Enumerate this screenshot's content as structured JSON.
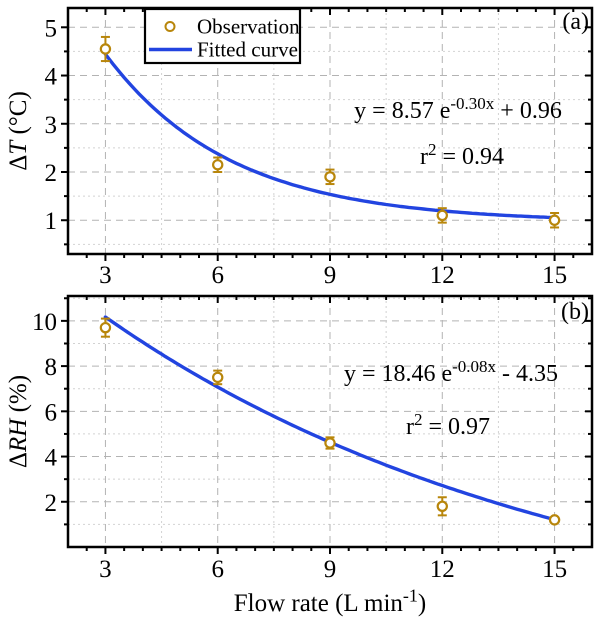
{
  "figure": {
    "xlabel_parts": [
      {
        "t": "Flow rate (L min"
      },
      {
        "t": "-1",
        "sup": true
      },
      {
        "t": ")"
      }
    ],
    "legend": {
      "position": "top-left",
      "items": [
        {
          "type": "marker",
          "label": "Observation"
        },
        {
          "type": "line",
          "label": "Fitted curve"
        }
      ]
    },
    "colors": {
      "curve": "#2244E0",
      "marker": "#B8860B",
      "grid_major": "#b3b3b3",
      "grid_minor": "#d2d2d2",
      "axis": "#000000",
      "background": "#ffffff"
    }
  },
  "chart_data": [
    {
      "type": "scatter",
      "panel_tag": "(a)",
      "xlabel": "Flow rate (L min^-1)",
      "ylabel": "dT (degC)",
      "ylabel_parts": [
        {
          "t": "Δ"
        },
        {
          "t": "T",
          "italic": true
        },
        {
          "t": " (°C)"
        }
      ],
      "x": [
        3,
        6,
        9,
        12,
        15
      ],
      "series": [
        {
          "name": "Observation",
          "style": "points",
          "values": [
            4.55,
            2.15,
            1.9,
            1.1,
            1.0
          ],
          "yerr": [
            0.25,
            0.15,
            0.15,
            0.15,
            0.15
          ]
        },
        {
          "name": "Fitted curve",
          "style": "line",
          "equation": "y = 8.57 e^(-0.30x) + 0.96",
          "A": 8.57,
          "k": -0.3,
          "C": 0.96,
          "r2": 0.94
        }
      ],
      "annotation": {
        "equation_parts": [
          {
            "t": "y = 8.57 e"
          },
          {
            "t": "-0.30x",
            "sup": true
          },
          {
            "t": " + 0.96"
          }
        ],
        "r2_parts": [
          {
            "t": "r"
          },
          {
            "t": "2",
            "sup": true
          },
          {
            "t": " = 0.94"
          }
        ]
      },
      "xlim": [
        2,
        16
      ],
      "ylim": [
        0.3,
        5.4
      ],
      "xticks": [
        3,
        6,
        9,
        12,
        15
      ],
      "yticks": [
        1,
        2,
        3,
        4,
        5
      ],
      "x_minor_tick_step": 0.5,
      "y_minor_step": 0.5,
      "x_minor_grid": [
        4.5,
        7.5,
        10.5,
        13.5
      ],
      "grid": true,
      "show_legend": true
    },
    {
      "type": "scatter",
      "panel_tag": "(b)",
      "xlabel": "Flow rate (L min^-1)",
      "ylabel": "dRH (%)",
      "ylabel_parts": [
        {
          "t": "Δ"
        },
        {
          "t": "RH",
          "italic": true
        },
        {
          "t": " (%)"
        }
      ],
      "x": [
        3,
        6,
        9,
        12,
        15
      ],
      "series": [
        {
          "name": "Observation",
          "style": "points",
          "values": [
            9.7,
            7.5,
            4.6,
            1.8,
            1.2
          ],
          "yerr": [
            0.4,
            0.3,
            0.25,
            0.4,
            0.1
          ]
        },
        {
          "name": "Fitted curve",
          "style": "line",
          "equation": "y = 18.46 e^(-0.08x) - 4.35",
          "A": 18.46,
          "k": -0.08,
          "C": -4.35,
          "r2": 0.97
        }
      ],
      "annotation": {
        "equation_parts": [
          {
            "t": "y = 18.46 e"
          },
          {
            "t": "-0.08x",
            "sup": true
          },
          {
            "t": " - 4.35"
          }
        ],
        "r2_parts": [
          {
            "t": "r"
          },
          {
            "t": "2",
            "sup": true
          },
          {
            "t": " = 0.97"
          }
        ]
      },
      "xlim": [
        2,
        16
      ],
      "ylim": [
        0,
        11.1
      ],
      "xticks": [
        3,
        6,
        9,
        12,
        15
      ],
      "yticks": [
        2,
        4,
        6,
        8,
        10
      ],
      "x_minor_tick_step": 0.5,
      "y_minor_step": 1,
      "x_minor_grid": [
        4.5,
        7.5,
        10.5,
        13.5
      ],
      "grid": true,
      "show_legend": false
    }
  ]
}
